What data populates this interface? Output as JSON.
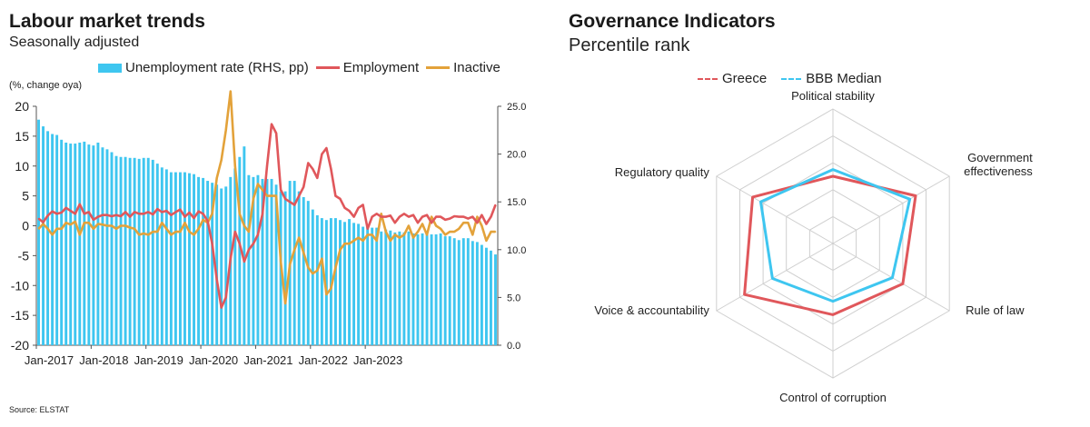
{
  "left_panel": {
    "title": "Labour market trends",
    "subtitle": "Seasonally adjusted",
    "left_unit": "(%, change oya)",
    "source": "Source: ELSTAT"
  },
  "right_panel": {
    "title": "Governance Indicators",
    "subtitle": "Percentile rank"
  },
  "colors": {
    "unemployment": "#3ec6f0",
    "employment": "#e0575b",
    "inactive": "#e3a23a",
    "greece": "#e0575b",
    "bbb_median": "#3ec6f0",
    "grid": "#cfcfcf"
  },
  "chart_data": [
    {
      "type": "bar+line",
      "title": "Labour market trends",
      "subtitle": "Seasonally adjusted",
      "ylabel": "(%, change oya)",
      "ylim": [
        -20,
        20
      ],
      "yticks": [
        "20",
        "15",
        "10",
        "5",
        "0",
        "-5",
        "-10",
        "-15",
        "-20"
      ],
      "y2lim": [
        0,
        25
      ],
      "y2ticks": [
        "25.0",
        "20.0",
        "15.0",
        "10.0",
        "5.0",
        "0.0"
      ],
      "x_start": "Jan-2017",
      "xticks": [
        "Jan-2017",
        "Jan-2018",
        "Jan-2019",
        "Jan-2020",
        "Jan-2021",
        "Jan-2022",
        "Jan-2023"
      ],
      "legend": "top",
      "grid": false,
      "series": [
        {
          "name": "Unemployment rate (RHS, pp)",
          "type": "bar",
          "axis": "right",
          "values": [
            23.6,
            22.9,
            22.4,
            22.1,
            22.0,
            21.5,
            21.2,
            21.1,
            21.1,
            21.2,
            21.3,
            21.0,
            20.9,
            21.2,
            20.7,
            20.5,
            20.2,
            19.8,
            19.7,
            19.7,
            19.6,
            19.6,
            19.5,
            19.6,
            19.6,
            19.4,
            19.0,
            18.6,
            18.4,
            18.1,
            18.1,
            18.1,
            18.1,
            18.0,
            17.9,
            17.6,
            17.5,
            17.2,
            17.0,
            16.8,
            16.4,
            16.6,
            17.6,
            18.5,
            19.7,
            20.8,
            17.8,
            17.6,
            17.8,
            17.4,
            17.4,
            17.4,
            16.8,
            16.1,
            16.1,
            17.2,
            17.2,
            16.1,
            15.5,
            15.1,
            14.2,
            13.6,
            13.3,
            13.1,
            13.3,
            13.3,
            13.1,
            12.9,
            13.2,
            12.8,
            12.7,
            12.4,
            12.4,
            12.3,
            12.3,
            11.9,
            12.1,
            12.0,
            11.8,
            11.9,
            11.8,
            11.9,
            11.7,
            11.6,
            11.7,
            11.8,
            11.6,
            11.6,
            11.7,
            11.4,
            11.4,
            11.2,
            11.0,
            11.2,
            11.2,
            10.9,
            10.8,
            10.5,
            10.2,
            9.9,
            9.5
          ]
        },
        {
          "name": "Employment",
          "type": "line",
          "axis": "left",
          "values": [
            1.2,
            0.6,
            1.7,
            2.4,
            2.0,
            2.2,
            3.0,
            2.5,
            2.0,
            3.6,
            2.0,
            2.3,
            1.0,
            1.5,
            1.8,
            1.8,
            1.6,
            1.8,
            1.6,
            2.3,
            1.5,
            2.3,
            2.0,
            2.0,
            2.3,
            1.9,
            2.8,
            2.3,
            2.5,
            1.8,
            2.3,
            2.7,
            1.5,
            2.2,
            1.3,
            2.4,
            2.0,
            0.8,
            -3.0,
            -9.0,
            -13.7,
            -12.0,
            -5.5,
            -1.0,
            -3.0,
            -6.0,
            -4.0,
            -3.0,
            -1.5,
            2.0,
            10.0,
            17.0,
            15.5,
            6.0,
            4.5,
            4.0,
            3.5,
            5.0,
            6.5,
            10.5,
            9.5,
            8.0,
            12.0,
            13.0,
            9.5,
            5.0,
            4.5,
            3.0,
            2.5,
            1.5,
            3.0,
            3.5,
            -0.5,
            1.5,
            2.0,
            1.5,
            1.5,
            1.7,
            0.5,
            1.5,
            2.0,
            1.5,
            1.8,
            0.5,
            1.5,
            1.8,
            0.5,
            1.5,
            1.5,
            1.0,
            1.2,
            1.6,
            1.5,
            1.5,
            1.2,
            1.5,
            0.5,
            1.8,
            0.3,
            1.5,
            3.5
          ]
        },
        {
          "name": "Inactive",
          "type": "line",
          "axis": "left",
          "values": [
            -0.5,
            0.3,
            -0.5,
            -1.5,
            -0.5,
            -0.5,
            0.5,
            0.2,
            0.7,
            -1.5,
            0.5,
            0.5,
            -0.5,
            0.3,
            0.2,
            0.0,
            0.0,
            -0.5,
            0.0,
            0.0,
            -0.3,
            -0.5,
            -1.5,
            -1.3,
            -1.5,
            -1.0,
            -1.0,
            0.5,
            -0.5,
            -1.5,
            -1.0,
            -1.0,
            0.5,
            -1.0,
            -1.5,
            -0.5,
            1.0,
            0.5,
            2.0,
            8.0,
            11.0,
            16.0,
            22.5,
            10.0,
            2.0,
            0.0,
            -1.0,
            4.5,
            7.0,
            6.0,
            5.0,
            5.0,
            5.0,
            -6.0,
            -13.0,
            -6.5,
            -4.0,
            -2.0,
            -4.5,
            -7.0,
            -8.0,
            -7.5,
            -5.5,
            -11.5,
            -10.5,
            -7.0,
            -4.0,
            -3.0,
            -3.0,
            -2.5,
            -2.0,
            -2.5,
            -1.5,
            -1.5,
            -2.5,
            2.0,
            -1.0,
            -2.5,
            -1.5,
            -2.0,
            -1.5,
            0.0,
            -2.0,
            -1.0,
            0.3,
            -1.5,
            1.5,
            0.0,
            -0.5,
            -1.5,
            -1.0,
            -1.0,
            -0.5,
            0.5,
            0.5,
            -1.5,
            1.5,
            0.0,
            -2.5,
            -1.0,
            -1.0
          ]
        }
      ]
    },
    {
      "type": "radar",
      "title": "Governance Indicators",
      "subtitle": "Percentile rank",
      "axes": [
        "Political stability",
        "Government effectiveness",
        "Rule of law",
        "Control of corruption",
        "Voice & accountability",
        "Regulatory quality"
      ],
      "rmax": 100,
      "grid_levels": 5,
      "legend": "top",
      "series": [
        {
          "name": "Greece",
          "style": "dashed",
          "values": [
            50,
            71,
            60,
            53,
            76,
            69
          ]
        },
        {
          "name": "BBB Median",
          "style": "dashed",
          "values": [
            55,
            66,
            51,
            43,
            52,
            62
          ]
        }
      ]
    }
  ]
}
